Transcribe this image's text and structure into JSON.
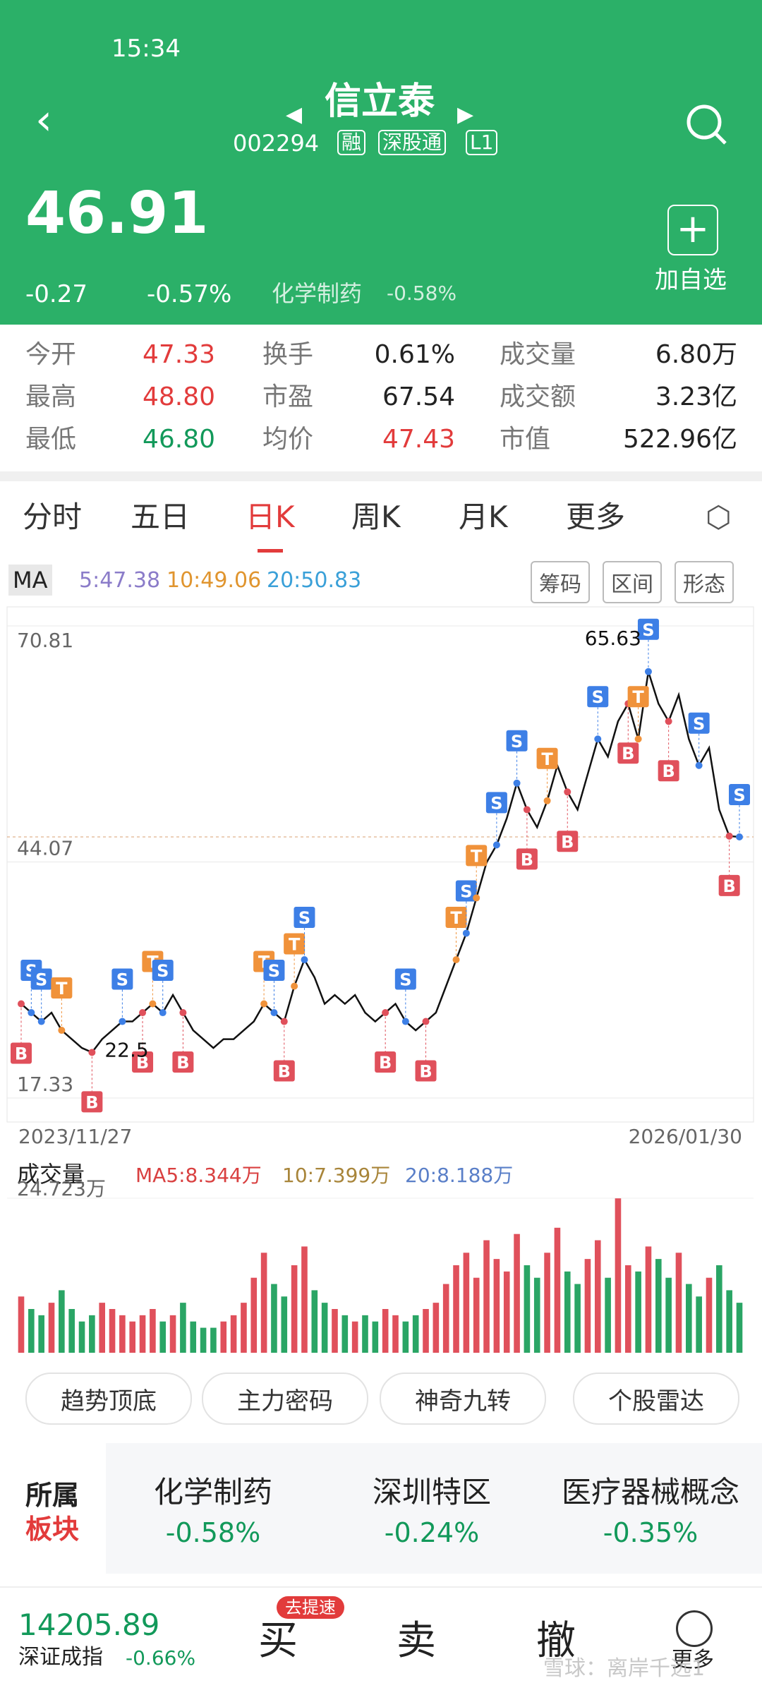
{
  "status": {
    "time": "15:34"
  },
  "header": {
    "name": "信立泰",
    "code": "002294",
    "tags": [
      "融",
      "深股通",
      "L1"
    ],
    "add": "加自选"
  },
  "quote": {
    "price": 46.91,
    "change": "-0.27",
    "pct": "-0.57%",
    "sector": "化学制药",
    "sector_pct": "-0.58%"
  },
  "stats": [
    [
      "今开",
      "47.33",
      "换手",
      "0.61%",
      "成交量",
      "6.80万"
    ],
    [
      "最高",
      "48.80",
      "市盈",
      "67.54",
      "成交额",
      "3.23亿"
    ],
    [
      "最低",
      "46.80",
      "均价",
      "47.43",
      "市值",
      "522.96亿"
    ]
  ],
  "tabs": [
    "分时",
    "五日",
    "日K",
    "周K",
    "月K",
    "更多"
  ],
  "ma_bar": {
    "selector": "MA",
    "items": [
      "5:47.38",
      "10:49.06",
      "20:50.83"
    ],
    "buttons": [
      "筹码",
      "区间",
      "形态"
    ]
  },
  "chart_data": [
    {
      "type": "line",
      "ylim": [
        17.33,
        70.81
      ],
      "yticks": [
        70.81,
        44.07,
        17.33
      ],
      "grid": true,
      "color": "#111",
      "values": [
        28,
        27,
        26,
        27,
        25,
        24,
        23,
        22.5,
        24,
        25,
        26,
        26,
        27,
        28,
        27,
        29,
        27,
        25,
        24,
        23,
        24,
        24,
        25,
        26,
        28,
        27,
        26,
        30,
        33,
        31,
        28,
        29,
        28,
        29,
        27,
        26,
        27,
        28,
        26,
        25,
        26,
        27,
        30,
        33,
        36,
        40,
        44,
        46,
        49,
        53,
        50,
        48,
        51,
        55,
        52,
        50,
        54,
        58,
        56,
        60,
        62,
        58,
        65.63,
        62,
        60,
        63,
        58,
        55,
        57,
        50,
        47,
        46.91
      ],
      "x_start": "2023/11/27",
      "x_end": "2026/01/30",
      "annotations": [
        {
          "index": 62,
          "value": 65.63
        },
        {
          "index": 7,
          "value": 22.5
        }
      ],
      "signals": [
        {
          "label": "B",
          "index": 0
        },
        {
          "label": "S",
          "index": 1
        },
        {
          "label": "S",
          "index": 2
        },
        {
          "label": "T",
          "index": 4
        },
        {
          "label": "B",
          "index": 7
        },
        {
          "label": "S",
          "index": 10
        },
        {
          "label": "B",
          "index": 12
        },
        {
          "label": "T",
          "index": 13
        },
        {
          "label": "S",
          "index": 14
        },
        {
          "label": "B",
          "index": 16
        },
        {
          "label": "T",
          "index": 24
        },
        {
          "label": "S",
          "index": 25
        },
        {
          "label": "B",
          "index": 26
        },
        {
          "label": "T",
          "index": 27
        },
        {
          "label": "S",
          "index": 28
        },
        {
          "label": "B",
          "index": 36
        },
        {
          "label": "S",
          "index": 38
        },
        {
          "label": "B",
          "index": 40
        },
        {
          "label": "T",
          "index": 43
        },
        {
          "label": "S",
          "index": 44
        },
        {
          "label": "T",
          "index": 45
        },
        {
          "label": "S",
          "index": 47
        },
        {
          "label": "S",
          "index": 49
        },
        {
          "label": "B",
          "index": 50
        },
        {
          "label": "T",
          "index": 52
        },
        {
          "label": "B",
          "index": 54
        },
        {
          "label": "S",
          "index": 57
        },
        {
          "label": "B",
          "index": 60
        },
        {
          "label": "T",
          "index": 61
        },
        {
          "label": "S",
          "index": 62
        },
        {
          "label": "B",
          "index": 64
        },
        {
          "label": "S",
          "index": 67
        },
        {
          "label": "B",
          "index": 70
        },
        {
          "label": "S",
          "index": 71
        }
      ]
    },
    {
      "type": "bar",
      "title": "成交量",
      "ylim": [
        0,
        24.723
      ],
      "yticks": [
        {
          "value": 24.723,
          "label": "24.723万"
        }
      ],
      "legend": [
        "MA5:8.344万",
        "10:7.399万",
        "20:8.188万"
      ],
      "values": [
        9,
        7,
        6,
        8,
        10,
        7,
        5,
        6,
        8,
        7,
        6,
        5,
        6,
        7,
        5,
        6,
        8,
        5,
        4,
        4,
        5,
        6,
        8,
        12,
        16,
        11,
        9,
        14,
        17,
        10,
        8,
        7,
        6,
        5,
        6,
        5,
        7,
        6,
        5,
        6,
        7,
        8,
        11,
        14,
        16,
        12,
        18,
        15,
        13,
        19,
        14,
        12,
        16,
        20,
        13,
        11,
        15,
        18,
        12,
        24.7,
        14,
        13,
        17,
        15,
        12,
        16,
        11,
        9,
        12,
        14,
        10,
        8
      ]
    }
  ],
  "tools": [
    "趋势顶底",
    "主力密码",
    "神奇九转",
    "个股雷达"
  ],
  "sectors": {
    "title": [
      "所属",
      "板块"
    ],
    "items": [
      {
        "name": "化学制药",
        "pct": "-0.58%"
      },
      {
        "name": "深圳特区",
        "pct": "-0.24%"
      },
      {
        "name": "医疗器械概念",
        "pct": "-0.35%"
      }
    ]
  },
  "bottom": {
    "index": "14205.89",
    "index_name": "深证成指",
    "index_pct": "-0.66%",
    "badge": "去提速",
    "buttons": [
      "买",
      "卖",
      "撤",
      "更多"
    ],
    "watermark": "雪球：离岸千远1"
  }
}
